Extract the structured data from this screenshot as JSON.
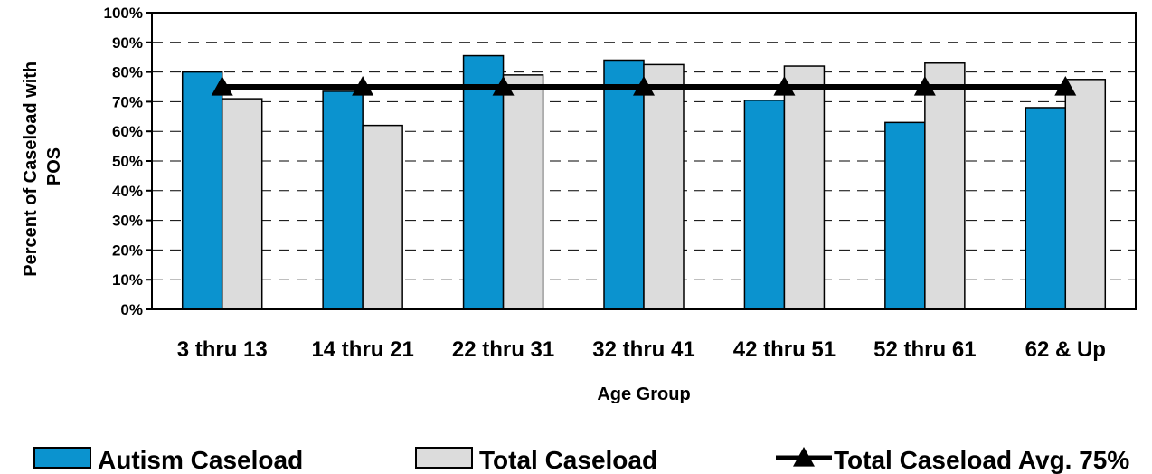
{
  "chart_data": {
    "type": "bar",
    "categories": [
      "3 thru 13",
      "14 thru 21",
      "22 thru 31",
      "32 thru 41",
      "42 thru 51",
      "52 thru 61",
      "62 & Up"
    ],
    "series": [
      {
        "name": "Autism Caseload",
        "values": [
          80,
          73.5,
          85.5,
          84,
          70.5,
          63,
          68
        ],
        "color": "#0b93cf"
      },
      {
        "name": "Total Caseload",
        "values": [
          71,
          62,
          79,
          82.5,
          82,
          83,
          77.5
        ],
        "color": "#dcdcdc"
      }
    ],
    "average_line": {
      "name": "Total Caseload Avg. 75%",
      "value": 75,
      "color": "#000000",
      "marker": "triangle"
    },
    "xlabel": "Age Group",
    "ylabel_lines": [
      "Percent of Caseload with",
      "POS"
    ],
    "ylim": [
      0,
      100
    ],
    "ytick_step": 10,
    "ytick_labels": [
      "0%",
      "10%",
      "20%",
      "30%",
      "40%",
      "50%",
      "60%",
      "70%",
      "80%",
      "90%",
      "100%"
    ],
    "grid": "dashed-horizontal",
    "legend_position": "bottom"
  }
}
